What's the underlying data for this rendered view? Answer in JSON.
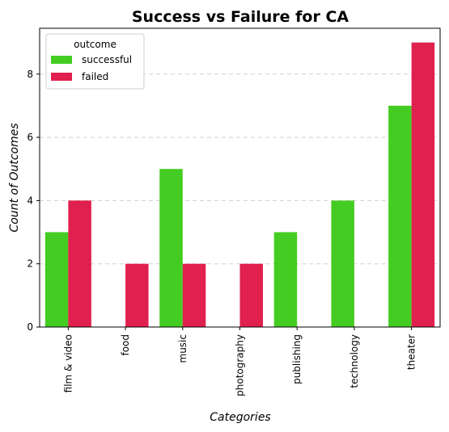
{
  "chart_data": {
    "type": "bar",
    "title": "Success vs Failure for CA",
    "xlabel": "Categories",
    "ylabel": "Count of Outcomes",
    "categories": [
      "film & video",
      "food",
      "music",
      "photography",
      "publishing",
      "technology",
      "theater"
    ],
    "series": [
      {
        "name": "successful",
        "color": "#44cc22",
        "values": [
          3,
          0,
          5,
          0,
          3,
          4,
          7
        ]
      },
      {
        "name": "failed",
        "color": "#e0204e",
        "values": [
          4,
          2,
          2,
          2,
          0,
          0,
          9
        ]
      }
    ],
    "yticks": [
      0,
      2,
      4,
      6,
      8
    ],
    "ylim": [
      0,
      9.45
    ],
    "grid": "y-dashed",
    "legend": {
      "title": "outcome",
      "placement": "top-left"
    }
  }
}
